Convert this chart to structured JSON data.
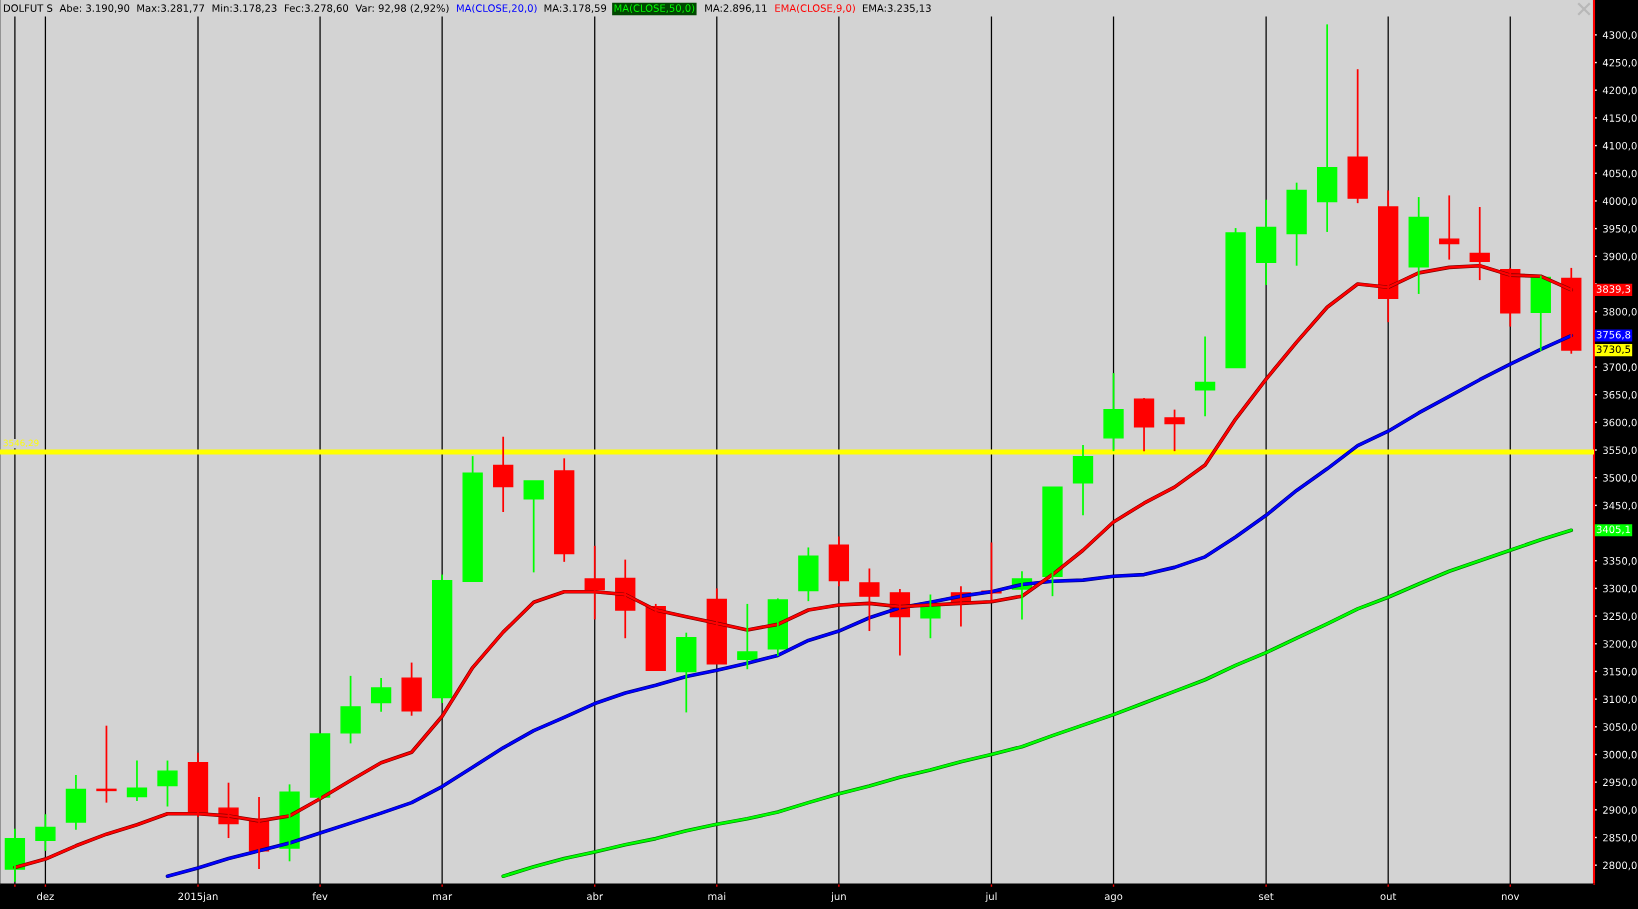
{
  "chart_data": {
    "type": "candlestick",
    "title": "DOLFUT S",
    "annotations": [
      "Abe: 3.190,90",
      "Max:3.281,77",
      "Min:3.178,23",
      "Fec:3.278,60",
      "Var: 92,98 (2,92%)",
      "MA:3.178,59",
      "MA:2.896,11",
      "EMA:3.235,13",
      {
        "text": "3839,3",
        "x": "2015-11-16",
        "y": 3839.3
      },
      {
        "text": "3756,8",
        "x": "2015-11-16",
        "y": 3756.8
      },
      {
        "text": "3730,5",
        "x": "2015-11-16",
        "y": 3730.5
      },
      {
        "text": "3405,1",
        "x": "2015-11-16",
        "y": 3405.1
      }
    ],
    "x": [
      "2014-11-24",
      "2014-12-01",
      "2014-12-08",
      "2014-12-15",
      "2014-12-22",
      "2014-12-29",
      "2015-01-05",
      "2015-01-12",
      "2015-01-19",
      "2015-01-26",
      "2015-02-02",
      "2015-02-09",
      "2015-02-16",
      "2015-02-23",
      "2015-03-02",
      "2015-03-09",
      "2015-03-16",
      "2015-03-23",
      "2015-03-30",
      "2015-04-06",
      "2015-04-13",
      "2015-04-20",
      "2015-04-27",
      "2015-05-04",
      "2015-05-11",
      "2015-05-18",
      "2015-05-25",
      "2015-06-01",
      "2015-06-08",
      "2015-06-15",
      "2015-06-22",
      "2015-06-29",
      "2015-07-06",
      "2015-07-13",
      "2015-07-20",
      "2015-07-27",
      "2015-08-03",
      "2015-08-10",
      "2015-08-17",
      "2015-08-24",
      "2015-08-31",
      "2015-09-07",
      "2015-09-14",
      "2015-09-21",
      "2015-09-28",
      "2015-10-05",
      "2015-10-12",
      "2015-10-19",
      "2015-10-26",
      "2015-11-02",
      "2015-11-09",
      "2015-11-16"
    ],
    "ohlc": [
      [
        2793,
        2866,
        2770,
        2848
      ],
      [
        2845,
        2892,
        2826,
        2868
      ],
      [
        2878,
        2963,
        2864,
        2937
      ],
      [
        2937,
        3052,
        2913,
        2935
      ],
      [
        2924,
        2989,
        2916,
        2939
      ],
      [
        2944,
        2989,
        2906,
        2970
      ],
      [
        2985,
        3003,
        2887,
        2892
      ],
      [
        2903,
        2949,
        2849,
        2875
      ],
      [
        2883,
        2923,
        2793,
        2826
      ],
      [
        2831,
        2946,
        2807,
        2932
      ],
      [
        2923,
        3037,
        2920,
        3037
      ],
      [
        3039,
        3142,
        3020,
        3086
      ],
      [
        3094,
        3138,
        3077,
        3120
      ],
      [
        3138,
        3166,
        3070,
        3079
      ],
      [
        3103,
        3325,
        3093,
        3314
      ],
      [
        3313,
        3539,
        3313,
        3508
      ],
      [
        3522,
        3574,
        3438,
        3484
      ],
      [
        3462,
        3494,
        3329,
        3494
      ],
      [
        3512,
        3535,
        3348,
        3363
      ],
      [
        3317,
        3377,
        3244,
        3298
      ],
      [
        3318,
        3352,
        3210,
        3261
      ],
      [
        3267,
        3272,
        3152,
        3152
      ],
      [
        3150,
        3220,
        3076,
        3211
      ],
      [
        3280,
        3300,
        3164,
        3164
      ],
      [
        3172,
        3272,
        3154,
        3185
      ],
      [
        3191,
        3282,
        3178,
        3279
      ],
      [
        3296,
        3374,
        3277,
        3358
      ],
      [
        3378,
        3394,
        3304,
        3314
      ],
      [
        3310,
        3336,
        3223,
        3286
      ],
      [
        3292,
        3299,
        3179,
        3249
      ],
      [
        3247,
        3289,
        3210,
        3273
      ],
      [
        3292,
        3304,
        3231,
        3273
      ],
      [
        3295,
        3383,
        3278,
        3292
      ],
      [
        3299,
        3331,
        3244,
        3317
      ],
      [
        3322,
        3483,
        3286,
        3483
      ],
      [
        3491,
        3559,
        3432,
        3538
      ],
      [
        3572,
        3689,
        3548,
        3623
      ],
      [
        3642,
        3644,
        3548,
        3592
      ],
      [
        3608,
        3623,
        3548,
        3598
      ],
      [
        3659,
        3755,
        3611,
        3672
      ],
      [
        3699,
        3951,
        3699,
        3942
      ],
      [
        3889,
        4002,
        3848,
        3952
      ],
      [
        3941,
        4033,
        3883,
        4019
      ],
      [
        3999,
        4319,
        3944,
        4060
      ],
      [
        4079,
        4238,
        3996,
        4005
      ],
      [
        3989,
        4019,
        3781,
        3824
      ],
      [
        3881,
        4007,
        3832,
        3970
      ],
      [
        3931,
        4010,
        3894,
        3923
      ],
      [
        3905,
        3989,
        3857,
        3891
      ],
      [
        3876,
        3879,
        3773,
        3798
      ],
      [
        3799,
        3865,
        3729,
        3862
      ],
      [
        3860,
        3879,
        3724,
        3730.5
      ]
    ],
    "colors": [
      "#00ff00",
      "#00ff00",
      "#00ff00",
      "#ff0000",
      "#00ff00",
      "#00ff00",
      "#ff0000",
      "#ff0000",
      "#ff0000",
      "#00ff00",
      "#00ff00",
      "#00ff00",
      "#00ff00",
      "#ff0000",
      "#00ff00",
      "#00ff00",
      "#ff0000",
      "#00ff00",
      "#ff0000",
      "#ff0000",
      "#ff0000",
      "#ff0000",
      "#00ff00",
      "#ff0000",
      "#00ff00",
      "#00ff00",
      "#00ff00",
      "#ff0000",
      "#ff0000",
      "#ff0000",
      "#00ff00",
      "#ff0000",
      "#ff0000",
      "#00ff00",
      "#00ff00",
      "#00ff00",
      "#00ff00",
      "#ff0000",
      "#ff0000",
      "#00ff00",
      "#00ff00",
      "#00ff00",
      "#00ff00",
      "#00ff00",
      "#ff0000",
      "#ff0000",
      "#00ff00",
      "#ff0000",
      "#ff0000",
      "#ff0000",
      "#00ff00",
      "#ff0000"
    ],
    "series": [
      {
        "name": "MA(CLOSE,20,0)",
        "type": "line",
        "color": "#0000ff",
        "values": [
          null,
          null,
          null,
          null,
          null,
          2780,
          2795,
          2812,
          2826,
          2840,
          2858,
          2876,
          2894,
          2913,
          2942,
          2977,
          3012,
          3043,
          3067,
          3092,
          3111,
          3125,
          3141,
          3152,
          3165,
          3179,
          3206,
          3223,
          3247,
          3265,
          3275,
          3286,
          3294,
          3307,
          3313,
          3315,
          3322,
          3325,
          3338,
          3357,
          3393,
          3432,
          3477,
          3516,
          3558,
          3584,
          3617,
          3647,
          3677,
          3705,
          3732,
          3756.8
        ]
      },
      {
        "name": "MA(CLOSE,50,0)",
        "type": "line",
        "color": "#00ff00",
        "values": [
          null,
          null,
          null,
          null,
          null,
          null,
          null,
          null,
          null,
          null,
          null,
          null,
          null,
          null,
          null,
          null,
          2780,
          2797,
          2812,
          2824,
          2837,
          2848,
          2862,
          2874,
          2884,
          2896,
          2913,
          2929,
          2943,
          2959,
          2972,
          2987,
          3000,
          3014,
          3034,
          3053,
          3072,
          3093,
          3114,
          3135,
          3161,
          3184,
          3210,
          3236,
          3263,
          3284,
          3308,
          3331,
          3350,
          3369,
          3388,
          3405.1
        ]
      },
      {
        "name": "EMA(CLOSE,9,0)",
        "type": "line",
        "color": "#ff0000",
        "values": [
          2796,
          2811,
          2835,
          2856,
          2873,
          2893,
          2893,
          2889,
          2880,
          2889,
          2920,
          2953,
          2985,
          3004,
          3069,
          3157,
          3221,
          3275,
          3294,
          3294,
          3289,
          3261,
          3249,
          3237,
          3225,
          3235,
          3261,
          3270,
          3273,
          3267,
          3270,
          3273,
          3276,
          3286,
          3325,
          3369,
          3420,
          3454,
          3483,
          3523,
          3606,
          3678,
          3745,
          3808,
          3850,
          3844,
          3870,
          3880,
          3883,
          3866,
          3864,
          3839.3
        ]
      }
    ],
    "ref_lines": [
      {
        "axis": "y",
        "value": 3546.29,
        "label": "3546,29",
        "color": "#ffff00"
      }
    ],
    "xlim": [
      "2014-11-20T14:00",
      "2015-11-21T05:00"
    ],
    "xticks": [
      {
        "value": "2014-11-24",
        "label": null
      },
      {
        "value": "2014-12-01",
        "label": "dez"
      },
      {
        "value": "2015-01-05",
        "label": "2015jan"
      },
      {
        "value": "2015-02-02",
        "label": "fev"
      },
      {
        "value": "2015-03-02",
        "label": "mar"
      },
      {
        "value": "2015-04-06",
        "label": "abr"
      },
      {
        "value": "2015-05-04",
        "label": "mai"
      },
      {
        "value": "2015-06-01",
        "label": "jun"
      },
      {
        "value": "2015-07-06",
        "label": "jul"
      },
      {
        "value": "2015-08-03",
        "label": "ago"
      },
      {
        "value": "2015-09-07",
        "label": "set"
      },
      {
        "value": "2015-10-05",
        "label": "out"
      },
      {
        "value": "2015-11-02",
        "label": "nov"
      }
    ],
    "ylim": [
      2766,
      4363
    ],
    "yticks": [
      {
        "value": 2800,
        "label": "2800,0"
      },
      {
        "value": 2850,
        "label": "2850,0"
      },
      {
        "value": 2900,
        "label": "2900,0"
      },
      {
        "value": 2950,
        "label": "2950,0"
      },
      {
        "value": 3000,
        "label": "3000,0"
      },
      {
        "value": 3050,
        "label": "3050,0"
      },
      {
        "value": 3100,
        "label": "3100,0"
      },
      {
        "value": 3150,
        "label": "3150,0"
      },
      {
        "value": 3200,
        "label": "3200,0"
      },
      {
        "value": 3250,
        "label": "3250,0"
      },
      {
        "value": 3300,
        "label": "3300,0"
      },
      {
        "value": 3350,
        "label": "3350,0"
      },
      {
        "value": 3400,
        "label": null
      },
      {
        "value": 3450,
        "label": "3450,0"
      },
      {
        "value": 3500,
        "label": "3500,0"
      },
      {
        "value": 3550,
        "label": "3550,0"
      },
      {
        "value": 3600,
        "label": "3600,0"
      },
      {
        "value": 3650,
        "label": "3650,0"
      },
      {
        "value": 3700,
        "label": "3700,0"
      },
      {
        "value": 3750,
        "label": null
      },
      {
        "value": 3800,
        "label": "3800,0"
      },
      {
        "value": 3850,
        "label": null
      },
      {
        "value": 3900,
        "label": "3900,0"
      },
      {
        "value": 3950,
        "label": "3950,0"
      },
      {
        "value": 4000,
        "label": "4000,0"
      },
      {
        "value": 4050,
        "label": "4050,0"
      },
      {
        "value": 4100,
        "label": "4100,0"
      },
      {
        "value": 4150,
        "label": "4150,0"
      },
      {
        "value": 4200,
        "label": "4200,0"
      },
      {
        "value": 4250,
        "label": "4250,0"
      },
      {
        "value": 4300,
        "label": "4300,0"
      }
    ],
    "grid": "x",
    "legend": "top left"
  }
}
